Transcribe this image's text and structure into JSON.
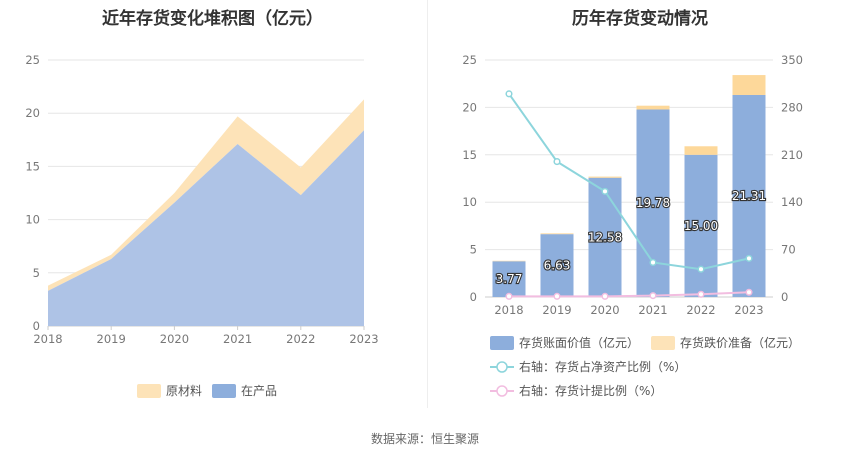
{
  "left_title": "近年存货变化堆积图（亿元）",
  "right_title": "历年存货变动情况",
  "source": "数据来源：恒生聚源",
  "colors": {
    "area_product": "#aec3e6",
    "area_material": "#fde3b8",
    "bar_book": "#8daedc",
    "bar_reserve": "#fdd89a",
    "line_ratio": "#8dd5dc",
    "line_provision": "#f2bde0"
  },
  "chart_data": [
    {
      "type": "area",
      "stacked": true,
      "x": [
        "2018",
        "2019",
        "2020",
        "2021",
        "2022",
        "2023"
      ],
      "series": [
        {
          "name": "在产品",
          "values": [
            3.3,
            6.3,
            11.6,
            17.1,
            12.3,
            18.4
          ]
        },
        {
          "name": "原材料",
          "values": [
            0.5,
            0.4,
            0.9,
            2.6,
            2.6,
            2.9
          ]
        }
      ],
      "ylim": [
        0,
        25
      ],
      "yticks": [
        "0",
        "5",
        "10",
        "15",
        "20",
        "25"
      ],
      "legend": [
        "原材料",
        "在产品"
      ],
      "legend_position": "bottom",
      "grid": true
    },
    {
      "type": "bar",
      "stacked": true,
      "categories": [
        "2018",
        "2019",
        "2020",
        "2021",
        "2022",
        "2023"
      ],
      "series": [
        {
          "name": "存货账面价值（亿元）",
          "values": [
            3.77,
            6.63,
            12.58,
            19.78,
            15.0,
            21.31
          ],
          "labels": [
            "3.77",
            "6.63",
            "12.58",
            "19.78",
            "15.00",
            "21.31"
          ]
        },
        {
          "name": "存货跌价准备（亿元）",
          "values": [
            0.05,
            0.08,
            0.12,
            0.4,
            0.9,
            2.1
          ]
        }
      ],
      "lines": [
        {
          "name": "右轴：存货占净资产比例（%）",
          "axis": "right",
          "values": [
            300,
            200,
            156,
            51,
            41,
            57
          ]
        },
        {
          "name": "右轴：存货计提比例（%）",
          "axis": "right",
          "values": [
            1,
            1,
            1,
            2,
            4,
            7
          ]
        }
      ],
      "ylim": [
        0,
        25
      ],
      "y2lim": [
        0,
        350
      ],
      "yticks": [
        "0",
        "5",
        "10",
        "15",
        "20",
        "25"
      ],
      "y2ticks": [
        "0",
        "70",
        "140",
        "210",
        "280",
        "350"
      ],
      "legend_position": "bottom",
      "grid": true
    }
  ]
}
